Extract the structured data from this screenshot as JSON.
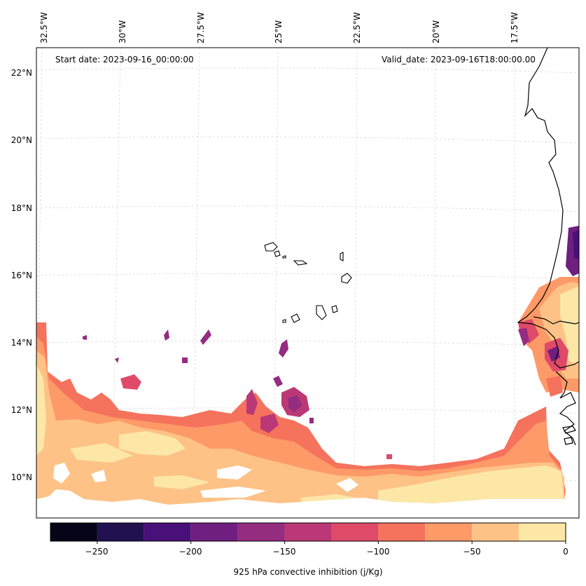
{
  "map": {
    "start_date": "Start date: 2023-09-16_00:00:00",
    "valid_date": "Valid_date: 2023-09-16T18:00:00.00",
    "lon_labels": [
      "32.5°W",
      "30°W",
      "27.5°W",
      "25°W",
      "22.5°W",
      "20°W",
      "17.5°W"
    ],
    "lat_labels": [
      "22°N",
      "20°N",
      "18°N",
      "16°N",
      "14°N",
      "12°N",
      "10°N"
    ],
    "colors": {
      "cin_0_25": "#fce7a7",
      "cin_25_50": "#fec286",
      "cin_50_75": "#fd9a68",
      "cin_75_100": "#f5725c",
      "cin_100_125": "#df4a68",
      "cin_125_150": "#bb3877",
      "cin_150_175": "#942c80",
      "cin_175_200": "#6e1f80",
      "cin_200_225": "#4a1079",
      "cin_225_250": "#221150",
      "cin_250_275": "#050418"
    }
  },
  "colorbar": {
    "ticks": [
      "−250",
      "−200",
      "−150",
      "−100",
      "−50",
      "0"
    ],
    "label": "925 hPa convective inhibition (j/Kg)",
    "levels": [
      -275,
      -250,
      -225,
      -200,
      -175,
      -150,
      -125,
      -100,
      -75,
      -50,
      -25,
      0
    ],
    "colors": [
      "#050418",
      "#221150",
      "#4a1079",
      "#6e1f80",
      "#942c80",
      "#bb3877",
      "#df4a68",
      "#f5725c",
      "#fd9a68",
      "#fec286",
      "#fce7a7"
    ]
  }
}
